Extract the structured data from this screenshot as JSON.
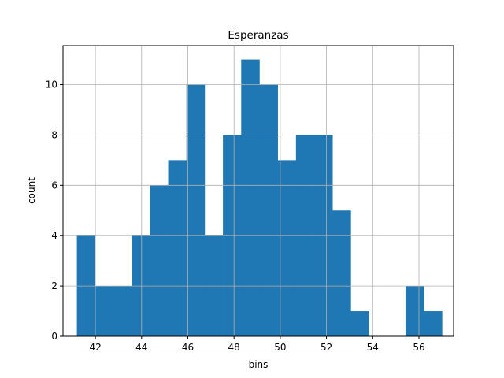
{
  "chart_data": {
    "type": "bar",
    "title": "Esperanzas",
    "xlabel": "bins",
    "ylabel": "count",
    "grid": true,
    "xlim": [
      40.6,
      57.5
    ],
    "ylim": [
      0,
      11.55
    ],
    "xticks": [
      42,
      44,
      46,
      48,
      50,
      52,
      54,
      56
    ],
    "yticks": [
      0,
      2,
      4,
      6,
      8,
      10
    ],
    "bar_color": "#1f77b4",
    "bins": [
      {
        "x0": 41.2,
        "x1": 41.99,
        "count": 4
      },
      {
        "x0": 41.99,
        "x1": 42.78,
        "count": 2
      },
      {
        "x0": 42.78,
        "x1": 43.57,
        "count": 2
      },
      {
        "x0": 43.57,
        "x1": 44.36,
        "count": 4
      },
      {
        "x0": 44.36,
        "x1": 45.15,
        "count": 6
      },
      {
        "x0": 45.15,
        "x1": 45.94,
        "count": 7
      },
      {
        "x0": 45.94,
        "x1": 46.73,
        "count": 10
      },
      {
        "x0": 46.73,
        "x1": 47.52,
        "count": 4
      },
      {
        "x0": 47.52,
        "x1": 48.31,
        "count": 8
      },
      {
        "x0": 48.31,
        "x1": 49.1,
        "count": 11
      },
      {
        "x0": 49.1,
        "x1": 49.89,
        "count": 10
      },
      {
        "x0": 49.89,
        "x1": 50.68,
        "count": 7
      },
      {
        "x0": 50.68,
        "x1": 51.47,
        "count": 8
      },
      {
        "x0": 51.47,
        "x1": 52.26,
        "count": 8
      },
      {
        "x0": 52.26,
        "x1": 53.05,
        "count": 5
      },
      {
        "x0": 53.05,
        "x1": 53.84,
        "count": 1
      },
      {
        "x0": 53.84,
        "x1": 54.63,
        "count": 0
      },
      {
        "x0": 54.63,
        "x1": 55.42,
        "count": 0
      },
      {
        "x0": 55.42,
        "x1": 56.21,
        "count": 2
      },
      {
        "x0": 56.21,
        "x1": 57.0,
        "count": 1
      }
    ]
  }
}
